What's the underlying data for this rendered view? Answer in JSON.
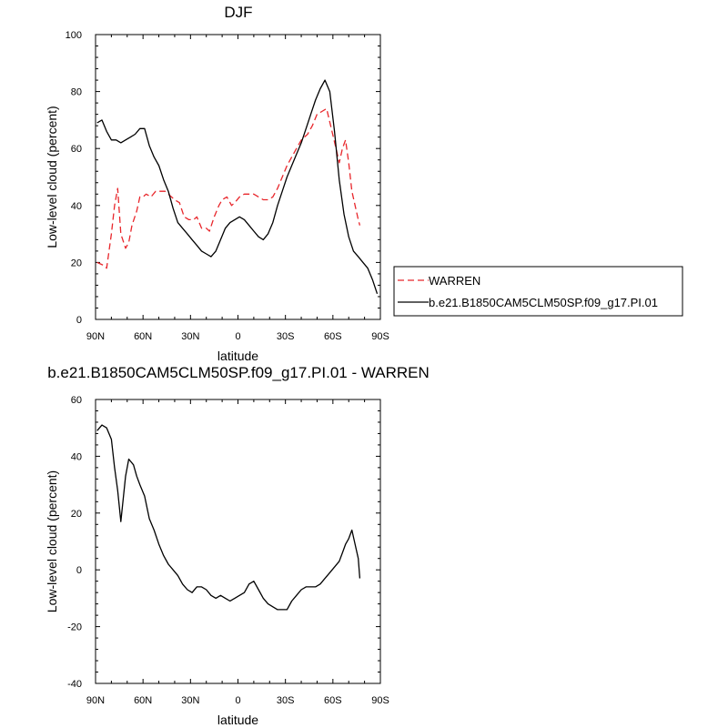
{
  "chart_data": [
    {
      "type": "line",
      "title": "DJF",
      "xlabel": "latitude",
      "ylabel": "Low-level cloud (percent)",
      "xlim": [
        90,
        -90
      ],
      "ylim": [
        0,
        100
      ],
      "xticks": [
        {
          "value": 90,
          "label": "90N"
        },
        {
          "value": 60,
          "label": "60N"
        },
        {
          "value": 30,
          "label": "30N"
        },
        {
          "value": 0,
          "label": "0"
        },
        {
          "value": -30,
          "label": "30S"
        },
        {
          "value": -60,
          "label": "60S"
        },
        {
          "value": -90,
          "label": "90S"
        }
      ],
      "yticks": [
        0,
        20,
        40,
        60,
        80,
        100
      ],
      "legend_position": "right",
      "series": [
        {
          "name": "WARREN",
          "color": "#e8262b",
          "dash": "dashed",
          "x": [
            89,
            85,
            83,
            80,
            78,
            76,
            74,
            71,
            69,
            67,
            64,
            62,
            60,
            58,
            55,
            52,
            49,
            46,
            44,
            40,
            37,
            34,
            31,
            28,
            26,
            23,
            20,
            18,
            15,
            12,
            10,
            7,
            4,
            2,
            -1,
            -4,
            -7,
            -10,
            -13,
            -16,
            -19,
            -22,
            -25,
            -28,
            -31,
            -34,
            -37,
            -40,
            -44,
            -47,
            -50,
            -53,
            -56,
            -59,
            -62,
            -64,
            -66,
            -68,
            -70,
            -72,
            -74,
            -76,
            -77
          ],
          "y": [
            20,
            19,
            18,
            30,
            40,
            46,
            30,
            25,
            27,
            33,
            38,
            43,
            43,
            44,
            43,
            45,
            45,
            45,
            44,
            42,
            41,
            36,
            35,
            35,
            36,
            32,
            32,
            31,
            36,
            40,
            42,
            43,
            40,
            41,
            43,
            44,
            44,
            44,
            43,
            42,
            42,
            43,
            46,
            50,
            54,
            57,
            60,
            63,
            65,
            68,
            72,
            73,
            74,
            67,
            60,
            55,
            60,
            63,
            55,
            45,
            40,
            35,
            33
          ]
        },
        {
          "name": "b.e21.B1850CAM5CLM50SP.f09_g17.PI.01",
          "color": "#000000",
          "dash": "solid",
          "x": [
            89,
            86,
            83,
            80,
            77,
            74,
            71,
            68,
            65,
            62,
            59,
            56,
            53,
            50,
            47,
            44,
            41,
            38,
            35,
            32,
            29,
            26,
            23,
            20,
            17,
            14,
            11,
            8,
            5,
            2,
            -1,
            -4,
            -7,
            -10,
            -13,
            -16,
            -19,
            -22,
            -25,
            -28,
            -31,
            -34,
            -37,
            -40,
            -43,
            -46,
            -49,
            -52,
            -55,
            -58,
            -61,
            -64,
            -67,
            -70,
            -73,
            -76,
            -79,
            -82,
            -85,
            -88
          ],
          "y": [
            69,
            70,
            66,
            63,
            63,
            62,
            63,
            64,
            65,
            67,
            67,
            61,
            57,
            54,
            49,
            45,
            39,
            34,
            32,
            30,
            28,
            26,
            24,
            23,
            22,
            24,
            28,
            32,
            34,
            35,
            36,
            35,
            33,
            31,
            29,
            28,
            30,
            34,
            40,
            45,
            50,
            54,
            58,
            62,
            67,
            72,
            77,
            81,
            84,
            80,
            66,
            49,
            37,
            29,
            24,
            22,
            20,
            18,
            14,
            9
          ]
        }
      ]
    },
    {
      "type": "line",
      "title": "b.e21.B1850CAM5CLM50SP.f09_g17.PI.01 - WARREN",
      "xlabel": "latitude",
      "ylabel": "Low-level cloud (percent)",
      "xlim": [
        90,
        -90
      ],
      "ylim": [
        -40,
        60
      ],
      "xticks": [
        {
          "value": 90,
          "label": "90N"
        },
        {
          "value": 60,
          "label": "60N"
        },
        {
          "value": 30,
          "label": "30N"
        },
        {
          "value": 0,
          "label": "0"
        },
        {
          "value": -30,
          "label": "30S"
        },
        {
          "value": -60,
          "label": "60S"
        },
        {
          "value": -90,
          "label": "90S"
        }
      ],
      "yticks": [
        -40,
        -20,
        0,
        20,
        40,
        60
      ],
      "series": [
        {
          "color": "#000000",
          "dash": "solid",
          "x": [
            89,
            86,
            83,
            80,
            78,
            76,
            74,
            71,
            69,
            66,
            64,
            62,
            59,
            56,
            53,
            50,
            47,
            44,
            41,
            38,
            35,
            32,
            29,
            26,
            23,
            20,
            17,
            14,
            11,
            8,
            5,
            2,
            -1,
            -4,
            -7,
            -10,
            -13,
            -16,
            -19,
            -22,
            -25,
            -28,
            -31,
            -34,
            -37,
            -40,
            -43,
            -46,
            -49,
            -52,
            -55,
            -58,
            -61,
            -64,
            -66,
            -68,
            -70,
            -72,
            -74,
            -76,
            -77
          ],
          "y": [
            49,
            51,
            50,
            46,
            36,
            28,
            17,
            33,
            39,
            37,
            33,
            30,
            26,
            18,
            14,
            9,
            5,
            2,
            0,
            -2,
            -5,
            -7,
            -8,
            -6,
            -6,
            -7,
            -9,
            -10,
            -9,
            -10,
            -11,
            -10,
            -9,
            -8,
            -5,
            -4,
            -7,
            -10,
            -12,
            -13,
            -14,
            -14,
            -14,
            -11,
            -9,
            -7,
            -6,
            -6,
            -6,
            -5,
            -3,
            -1,
            1,
            3,
            6,
            9,
            11,
            14,
            9,
            4,
            -3
          ]
        }
      ]
    }
  ]
}
